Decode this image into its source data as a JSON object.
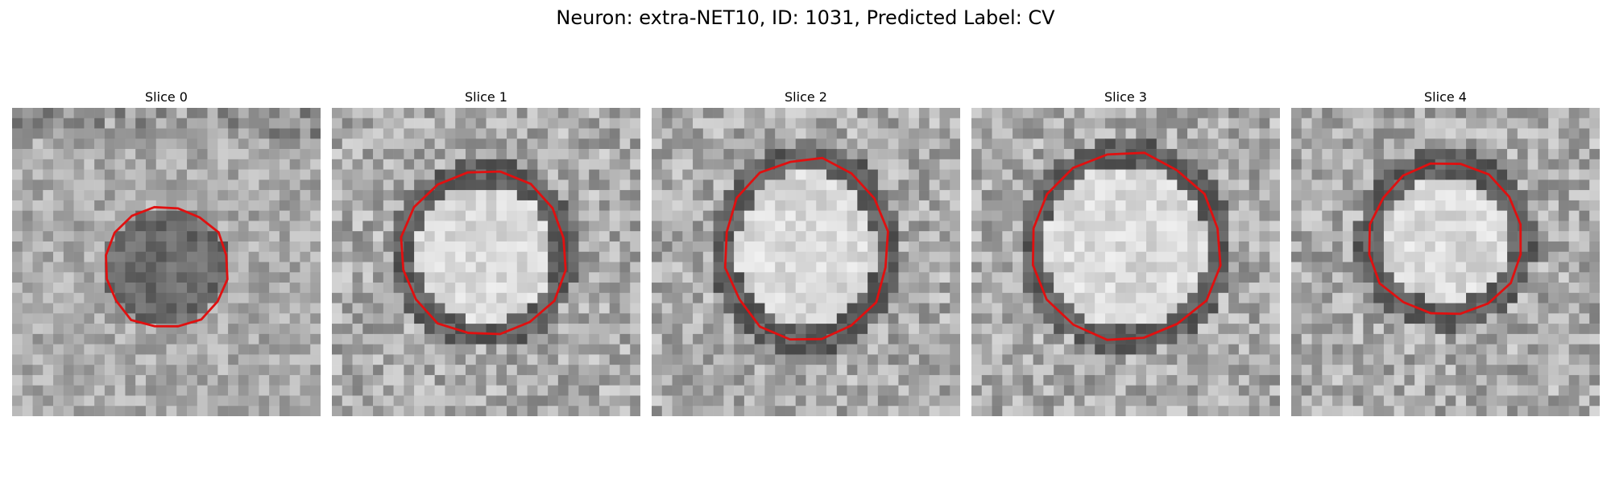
{
  "figure": {
    "title": "Neuron: extra-NET10, ID: 1031, Predicted Label: CV",
    "panels": [
      {
        "label": "Slice 0",
        "seed": 11,
        "variant": "dark"
      },
      {
        "label": "Slice 1",
        "seed": 23,
        "variant": "ring"
      },
      {
        "label": "Slice 2",
        "seed": 37,
        "variant": "ring"
      },
      {
        "label": "Slice 3",
        "seed": 51,
        "variant": "ring"
      },
      {
        "label": "Slice 4",
        "seed": 67,
        "variant": "ring"
      }
    ],
    "contour_color": "#e01010"
  }
}
